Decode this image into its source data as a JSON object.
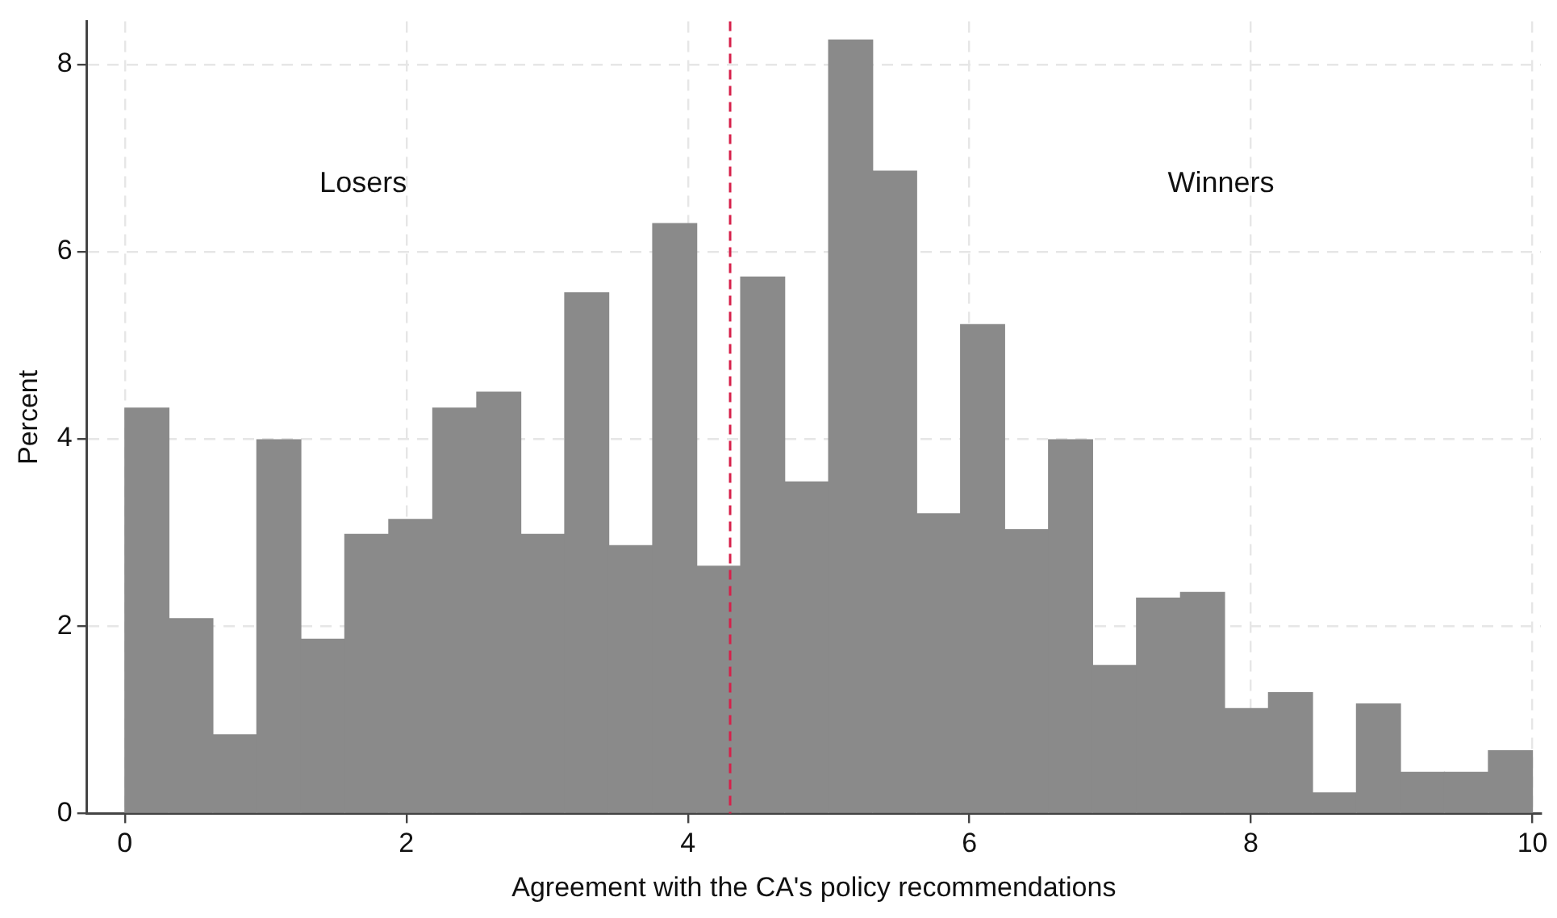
{
  "chart_data": {
    "type": "histogram",
    "xlabel": "Agreement with the CA's policy recommendations",
    "ylabel": "Percent",
    "bins": [
      0,
      0.3125,
      0.625,
      0.9375,
      1.25,
      1.5625,
      1.875,
      2.1875,
      2.5,
      2.8125,
      3.125,
      3.4375,
      3.75,
      4.0625,
      4.375,
      4.6875,
      5,
      5.3125,
      5.625,
      5.9375,
      6.25,
      6.5625,
      6.875,
      7.1875,
      7.5,
      7.8125,
      8.125,
      8.4375,
      8.75,
      9.0625,
      9.375,
      9.6875,
      10
    ],
    "values": [
      4.33,
      2.08,
      0.84,
      3.99,
      1.86,
      2.98,
      3.14,
      4.33,
      4.5,
      2.98,
      5.56,
      2.86,
      6.3,
      2.64,
      5.73,
      3.54,
      8.26,
      6.86,
      3.2,
      5.22,
      3.03,
      3.99,
      1.58,
      2.3,
      2.36,
      1.12,
      1.29,
      0.22,
      1.17,
      0.44,
      0.44,
      0.67
    ],
    "color": "#8a8a8a",
    "xlim": [
      -0.27,
      10.06
    ],
    "ylim": [
      0,
      8.46
    ],
    "xticks": [
      0,
      2,
      4,
      6,
      8,
      10
    ],
    "yticks": [
      0,
      2,
      4,
      6,
      8
    ],
    "grid": true,
    "ref_lines": [
      {
        "axis": "x",
        "value": 4.3,
        "color": "#d6204a",
        "line_style": "dashed"
      }
    ],
    "annotations": [
      "Losers",
      "Winners"
    ]
  }
}
